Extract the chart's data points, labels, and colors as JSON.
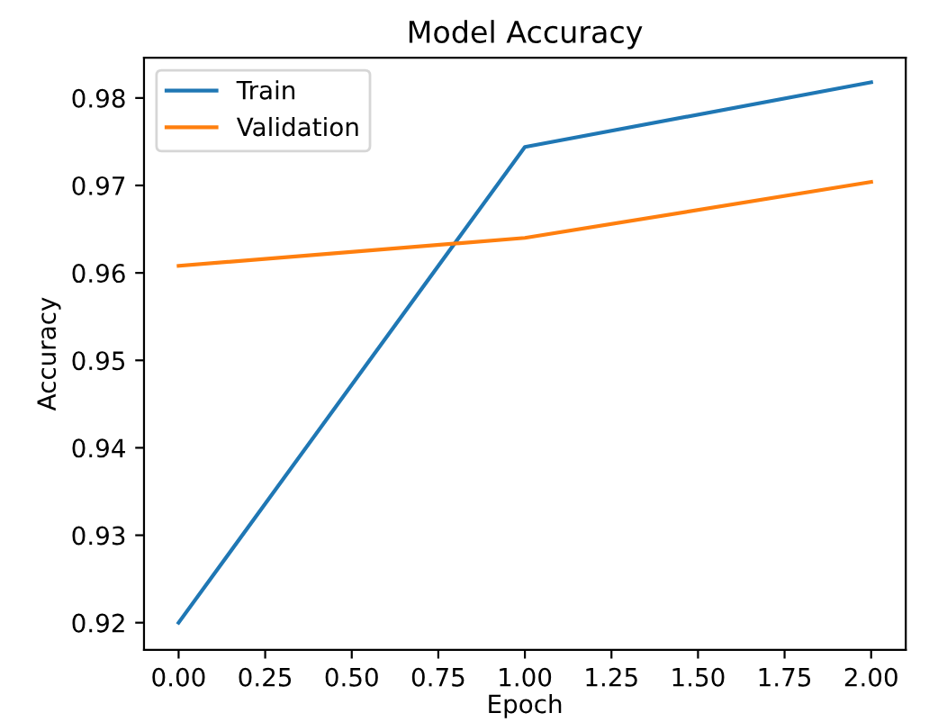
{
  "chart_data": {
    "type": "line",
    "title": "Model Accuracy",
    "xlabel": "Epoch",
    "ylabel": "Accuracy",
    "x": [
      0,
      1,
      2
    ],
    "series": [
      {
        "name": "Train",
        "color": "#1f77b4",
        "values": [
          0.92,
          0.9744,
          0.9818
        ]
      },
      {
        "name": "Validation",
        "color": "#ff7f0e",
        "values": [
          0.9608,
          0.964,
          0.9704
        ]
      }
    ],
    "xlim": [
      -0.1,
      2.1
    ],
    "xticks": [
      {
        "value": 0,
        "label": "0.00"
      },
      {
        "value": 0.25,
        "label": "0.25"
      },
      {
        "value": 0.5,
        "label": "0.50"
      },
      {
        "value": 0.75,
        "label": "0.75"
      },
      {
        "value": 1,
        "label": "1.00"
      },
      {
        "value": 1.25,
        "label": "1.25"
      },
      {
        "value": 1.5,
        "label": "1.50"
      },
      {
        "value": 1.75,
        "label": "1.75"
      },
      {
        "value": 2,
        "label": "2.00"
      }
    ],
    "ylim": [
      0.9169,
      0.9846
    ],
    "yticks": [
      0.92,
      0.93,
      0.94,
      0.95,
      0.96,
      0.97,
      0.98
    ],
    "legend": "top left",
    "grid": false,
    "marker": "none",
    "line_style": "solid"
  }
}
